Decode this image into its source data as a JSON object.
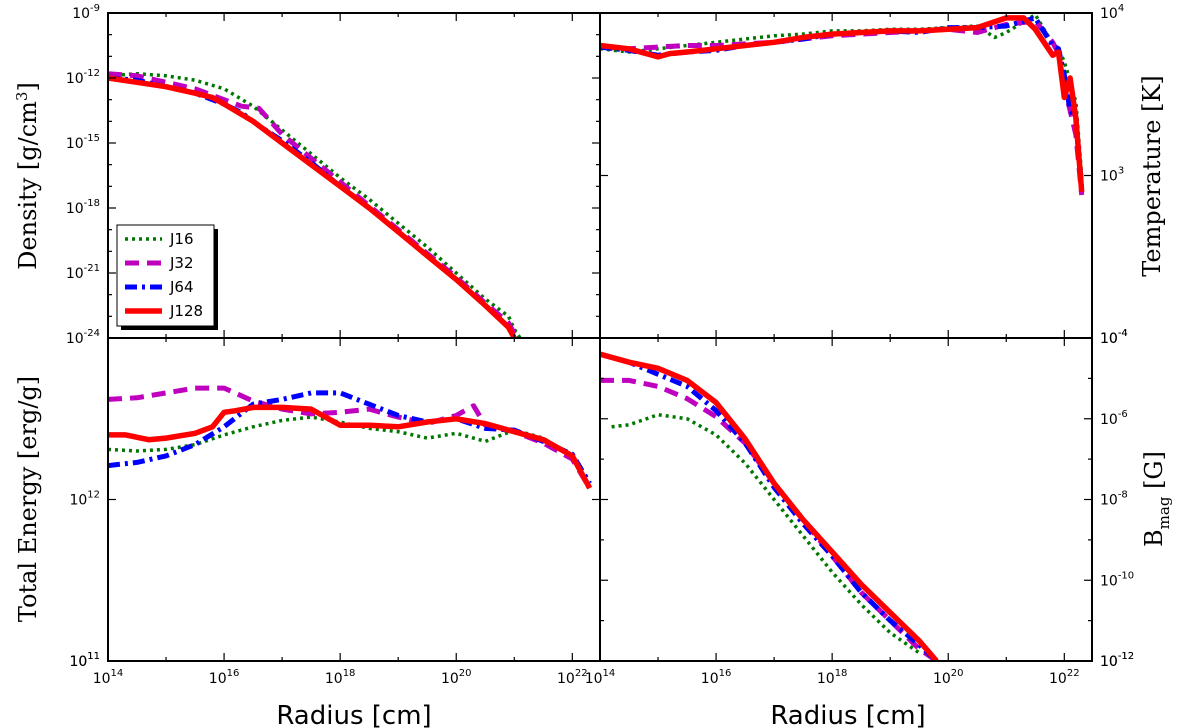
{
  "chart_data": [
    {
      "id": "density",
      "type": "line",
      "ylabel": "Density [g/cm^3]",
      "xlabel": "",
      "xscale": "log",
      "yscale": "log",
      "xlim": [
        100000000000000.0,
        3e+22
      ],
      "ylim": [
        1e-24,
        1e-09
      ],
      "yticks": [
        {
          "exp": "-9",
          "label": "10^-9"
        },
        {
          "exp": "-12",
          "label": "10^-12"
        },
        {
          "exp": "-15",
          "label": "10^-15"
        },
        {
          "exp": "-18",
          "label": "10^-18"
        },
        {
          "exp": "-21",
          "label": "10^-21"
        }
      ],
      "legend_position": "lower-left",
      "series": [
        {
          "name": "J16",
          "x": [
            14.0,
            14.5,
            15.0,
            15.5,
            16.0,
            16.5,
            17.0,
            17.5,
            18.0,
            18.5,
            19.0,
            19.5,
            20.0,
            20.5,
            20.9,
            21.0,
            21.1
          ],
          "y": [
            -11.9,
            -11.8,
            -11.9,
            -12.1,
            -12.5,
            -13.3,
            -14.4,
            -15.5,
            -16.6,
            -17.6,
            -18.7,
            -19.8,
            -21.0,
            -22.2,
            -23.0,
            -23.6,
            -24.0
          ]
        },
        {
          "name": "J32",
          "x": [
            14.0,
            14.5,
            15.0,
            15.5,
            16.0,
            16.3,
            16.6,
            17.0,
            17.5,
            18.0,
            18.5,
            19.0,
            19.5,
            20.0,
            20.5,
            20.9,
            21.0
          ],
          "y": [
            -11.8,
            -11.9,
            -12.2,
            -12.5,
            -13.0,
            -13.3,
            -13.4,
            -14.6,
            -15.7,
            -16.8,
            -17.9,
            -19.0,
            -20.1,
            -21.2,
            -22.4,
            -23.3,
            -23.8
          ]
        },
        {
          "name": "J64",
          "x": [
            14.0,
            14.5,
            15.0,
            15.5,
            16.0,
            16.3,
            16.6,
            17.0,
            17.5,
            18.0,
            18.5,
            19.0,
            19.5,
            20.0,
            20.5,
            20.9,
            21.0
          ],
          "y": [
            -12.0,
            -12.1,
            -12.4,
            -12.7,
            -13.2,
            -13.6,
            -14.2,
            -14.9,
            -15.9,
            -17.0,
            -18.0,
            -19.1,
            -20.2,
            -21.3,
            -22.5,
            -23.5,
            -24.0
          ]
        },
        {
          "name": "J128",
          "x": [
            14.0,
            14.5,
            15.0,
            15.5,
            15.8,
            16.0,
            16.5,
            17.0,
            17.5,
            18.0,
            18.5,
            19.0,
            19.5,
            20.0,
            20.5,
            20.9,
            21.0
          ],
          "y": [
            -12.0,
            -12.2,
            -12.4,
            -12.7,
            -12.9,
            -13.2,
            -14.0,
            -15.0,
            -16.0,
            -17.0,
            -18.0,
            -19.1,
            -20.2,
            -21.3,
            -22.5,
            -23.5,
            -24.0
          ]
        }
      ]
    },
    {
      "id": "temperature",
      "type": "line",
      "ylabel": "Temperature [K]",
      "xlabel": "",
      "xscale": "log",
      "yscale": "log",
      "xlim": [
        100000000000000.0,
        3e+22
      ],
      "ylim": [
        100,
        10000.0
      ],
      "yticks": [
        {
          "exp": "4",
          "label": "10^4"
        },
        {
          "exp": "3",
          "label": "10^3"
        }
      ],
      "series": [
        {
          "name": "J16",
          "x": [
            14.0,
            14.5,
            15.0,
            15.5,
            16.0,
            16.5,
            17.0,
            17.5,
            18.0,
            18.5,
            19.0,
            19.5,
            20.0,
            20.5,
            20.8,
            21.0,
            21.5,
            21.8,
            21.9,
            22.0,
            22.1,
            22.2,
            22.3
          ],
          "y": [
            3.78,
            3.76,
            3.78,
            3.8,
            3.82,
            3.84,
            3.86,
            3.87,
            3.89,
            3.89,
            3.9,
            3.9,
            3.91,
            3.92,
            3.85,
            3.88,
            3.99,
            3.81,
            3.78,
            3.7,
            3.58,
            3.45,
            3.0
          ]
        },
        {
          "name": "J32",
          "x": [
            14.0,
            14.5,
            15.0,
            15.5,
            16.0,
            16.5,
            17.0,
            17.5,
            18.0,
            18.5,
            19.0,
            19.5,
            20.0,
            20.5,
            21.0,
            21.5,
            21.8,
            21.9,
            22.0,
            22.1,
            22.2,
            22.3
          ],
          "y": [
            3.79,
            3.78,
            3.79,
            3.8,
            3.8,
            3.81,
            3.82,
            3.84,
            3.86,
            3.87,
            3.88,
            3.89,
            3.9,
            3.88,
            3.93,
            3.95,
            3.82,
            3.75,
            3.55,
            3.4,
            3.25,
            2.88
          ]
        },
        {
          "name": "J64",
          "x": [
            14.0,
            14.5,
            15.0,
            15.5,
            16.0,
            16.5,
            17.0,
            17.5,
            18.0,
            18.5,
            19.0,
            19.5,
            20.0,
            20.5,
            21.0,
            21.5,
            21.8,
            21.9,
            22.0,
            22.1,
            22.2,
            22.3
          ],
          "y": [
            3.79,
            3.77,
            3.74,
            3.76,
            3.77,
            3.8,
            3.82,
            3.84,
            3.87,
            3.88,
            3.89,
            3.88,
            3.91,
            3.91,
            3.92,
            3.97,
            3.8,
            3.78,
            3.62,
            3.4,
            3.35,
            2.92
          ]
        },
        {
          "name": "J128",
          "x": [
            14.0,
            14.5,
            15.0,
            15.2,
            15.5,
            16.0,
            16.5,
            17.0,
            17.5,
            18.0,
            18.5,
            19.0,
            19.5,
            20.0,
            20.5,
            21.0,
            21.3,
            21.5,
            21.8,
            21.9,
            22.0,
            22.1,
            22.2,
            22.3
          ],
          "y": [
            3.8,
            3.78,
            3.73,
            3.75,
            3.76,
            3.78,
            3.8,
            3.82,
            3.85,
            3.87,
            3.88,
            3.89,
            3.89,
            3.9,
            3.91,
            3.97,
            3.97,
            3.9,
            3.74,
            3.76,
            3.48,
            3.6,
            3.35,
            2.9
          ]
        }
      ]
    },
    {
      "id": "total-energy",
      "type": "line",
      "ylabel": "Total Energy [erg/g]",
      "xlabel": "Radius [cm]",
      "xscale": "log",
      "yscale": "log",
      "xlim": [
        100000000000000.0,
        3e+22
      ],
      "ylim": [
        100000000000.0,
        10000000000000.0
      ],
      "yticks": [
        {
          "exp": "12",
          "label": "10^12"
        },
        {
          "exp": "11",
          "label": "10^11"
        }
      ],
      "xticks": [
        {
          "exp": "14",
          "label": "10^14"
        },
        {
          "exp": "16",
          "label": "10^16"
        },
        {
          "exp": "18",
          "label": "10^18"
        },
        {
          "exp": "20",
          "label": "10^20"
        },
        {
          "exp": "22",
          "label": "10^22"
        }
      ],
      "series": [
        {
          "name": "J16",
          "x": [
            14.0,
            14.5,
            15.0,
            15.5,
            16.0,
            16.5,
            17.0,
            17.5,
            18.0,
            18.5,
            19.0,
            19.5,
            20.0,
            20.5,
            21.0,
            21.5,
            22.0,
            22.3
          ],
          "y": [
            12.31,
            12.3,
            12.31,
            12.34,
            12.4,
            12.45,
            12.49,
            12.51,
            12.48,
            12.44,
            12.42,
            12.38,
            12.41,
            12.36,
            12.43,
            12.38,
            12.27,
            12.08
          ]
        },
        {
          "name": "J32",
          "x": [
            14.0,
            14.5,
            15.0,
            15.5,
            16.0,
            16.5,
            17.0,
            17.5,
            18.0,
            18.5,
            19.0,
            19.5,
            20.0,
            20.3,
            20.5,
            21.0,
            21.5,
            22.0,
            22.3
          ],
          "y": [
            12.62,
            12.63,
            12.66,
            12.69,
            12.69,
            12.61,
            12.56,
            12.53,
            12.54,
            12.56,
            12.51,
            12.47,
            12.52,
            12.58,
            12.46,
            12.42,
            12.35,
            12.25,
            12.07
          ]
        },
        {
          "name": "J64",
          "x": [
            14.0,
            14.5,
            15.0,
            15.5,
            16.0,
            16.5,
            17.0,
            17.5,
            18.0,
            18.5,
            19.0,
            19.5,
            20.0,
            20.5,
            21.0,
            21.5,
            22.0,
            22.3
          ],
          "y": [
            12.21,
            12.23,
            12.27,
            12.34,
            12.45,
            12.59,
            12.62,
            12.66,
            12.66,
            12.59,
            12.52,
            12.48,
            12.5,
            12.44,
            12.43,
            12.36,
            12.28,
            12.1
          ]
        },
        {
          "name": "J128",
          "x": [
            14.0,
            14.3,
            14.7,
            15.0,
            15.5,
            15.8,
            16.0,
            16.2,
            16.5,
            17.0,
            17.5,
            18.0,
            18.5,
            19.0,
            19.5,
            20.0,
            20.5,
            21.0,
            21.5,
            22.0,
            22.3
          ],
          "y": [
            12.4,
            12.4,
            12.37,
            12.38,
            12.41,
            12.45,
            12.54,
            12.55,
            12.57,
            12.57,
            12.56,
            12.46,
            12.46,
            12.45,
            12.48,
            12.5,
            12.47,
            12.42,
            12.37,
            12.27,
            12.07
          ]
        }
      ]
    },
    {
      "id": "bmag",
      "type": "line",
      "ylabel": "B_mag [G]",
      "xlabel": "Radius [cm]",
      "xscale": "log",
      "yscale": "log",
      "xlim": [
        100000000000000.0,
        3e+22
      ],
      "ylim": [
        1e-12,
        0.0001
      ],
      "yticks": [
        {
          "exp": "-4",
          "label": "10^-4"
        },
        {
          "exp": "-6",
          "label": "10^-6"
        },
        {
          "exp": "-8",
          "label": "10^-8"
        },
        {
          "exp": "-10",
          "label": "10^-10"
        },
        {
          "exp": "-12",
          "label": "10^-12"
        }
      ],
      "xticks": [
        {
          "exp": "14",
          "label": "10^14"
        },
        {
          "exp": "16",
          "label": "10^16"
        },
        {
          "exp": "18",
          "label": "10^18"
        },
        {
          "exp": "20",
          "label": "10^20"
        },
        {
          "exp": "22",
          "label": "10^22"
        }
      ],
      "series": [
        {
          "name": "J16",
          "x": [
            14.2,
            14.5,
            14.8,
            15.0,
            15.5,
            16.0,
            16.5,
            17.0,
            17.5,
            18.0,
            18.5,
            19.0,
            19.5
          ],
          "y": [
            -6.2,
            -6.15,
            -6.0,
            -5.9,
            -6.0,
            -6.4,
            -7.1,
            -8.0,
            -8.9,
            -9.8,
            -10.6,
            -11.3,
            -11.8
          ]
        },
        {
          "name": "J32",
          "x": [
            14.0,
            14.5,
            15.0,
            15.5,
            16.0,
            16.5,
            17.0,
            17.5,
            18.0,
            18.5,
            19.0,
            19.5,
            19.8
          ],
          "y": [
            -5.05,
            -5.05,
            -5.2,
            -5.5,
            -5.95,
            -6.6,
            -7.6,
            -8.5,
            -9.4,
            -10.3,
            -11.0,
            -11.7,
            -12.0
          ]
        },
        {
          "name": "J64",
          "x": [
            14.0,
            14.5,
            15.0,
            15.5,
            16.0,
            16.5,
            17.0,
            17.5,
            18.0,
            18.5,
            19.0,
            19.5,
            19.8
          ],
          "y": [
            -4.4,
            -4.6,
            -4.9,
            -5.2,
            -5.8,
            -6.6,
            -7.7,
            -8.6,
            -9.4,
            -10.3,
            -11.0,
            -11.6,
            -12.0
          ]
        },
        {
          "name": "J128",
          "x": [
            14.0,
            14.5,
            15.0,
            15.5,
            16.0,
            16.5,
            17.0,
            17.5,
            18.0,
            18.5,
            19.0,
            19.5,
            19.8
          ],
          "y": [
            -4.4,
            -4.6,
            -4.75,
            -5.05,
            -5.6,
            -6.5,
            -7.6,
            -8.5,
            -9.3,
            -10.1,
            -10.8,
            -11.5,
            -12.0
          ]
        }
      ]
    }
  ],
  "legend": {
    "items": [
      {
        "name": "J16",
        "color": "#007700",
        "style": "dotted"
      },
      {
        "name": "J32",
        "color": "#bf00bf",
        "style": "dashed"
      },
      {
        "name": "J64",
        "color": "#0000ff",
        "style": "dashdot"
      },
      {
        "name": "J128",
        "color": "#ff0000",
        "style": "solid"
      }
    ]
  },
  "colors": {
    "J16": "#007700",
    "J32": "#bf00bf",
    "J64": "#0000ff",
    "J128": "#ff0000"
  }
}
